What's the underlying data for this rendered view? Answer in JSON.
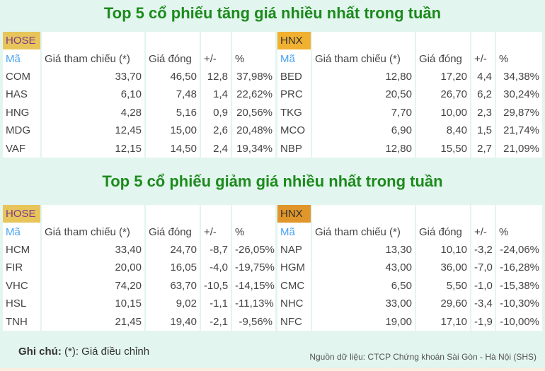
{
  "colors": {
    "hose_label": "#e8c55a",
    "hnx_label_top": "#f0b030",
    "hnx_label_bottom": "#e0962a",
    "title": "#1c8a1c",
    "code": "#4aa3f0",
    "up": "#1c8a1c",
    "down": "#e83a3a"
  },
  "top": {
    "title": "Top 5 cổ phiếu tăng giá nhiều nhất trong tuần",
    "headers": [
      "Mã",
      "Giá tham chiếu (*)",
      "Giá đóng",
      "+/-",
      "%"
    ],
    "hose": {
      "label": "HOSE",
      "rows": [
        [
          "COM",
          "33,70",
          "46,50",
          "12,8",
          "37,98%"
        ],
        [
          "HAS",
          "6,10",
          "7,48",
          "1,4",
          "22,62%"
        ],
        [
          "HNG",
          "4,28",
          "5,16",
          "0,9",
          "20,56%"
        ],
        [
          "MDG",
          "12,45",
          "15,00",
          "2,6",
          "20,48%"
        ],
        [
          "VAF",
          "12,15",
          "14,50",
          "2,4",
          "19,34%"
        ]
      ]
    },
    "hnx": {
      "label": "HNX",
      "rows": [
        [
          "BED",
          "12,80",
          "17,20",
          "4,4",
          "34,38%"
        ],
        [
          "PRC",
          "20,50",
          "26,70",
          "6,2",
          "30,24%"
        ],
        [
          "TKG",
          "7,70",
          "10,00",
          "2,3",
          "29,87%"
        ],
        [
          "MCO",
          "6,90",
          "8,40",
          "1,5",
          "21,74%"
        ],
        [
          "NBP",
          "12,80",
          "15,50",
          "2,7",
          "21,09%"
        ]
      ]
    }
  },
  "bottom": {
    "title": "Top 5 cổ phiếu giảm giá nhiều nhất trong tuần",
    "headers": [
      "Mã",
      "Giá tham chiếu (*)",
      "Giá đóng",
      "+/-",
      "%"
    ],
    "hose": {
      "label": "HOSE",
      "rows": [
        [
          "HCM",
          "33,40",
          "24,70",
          "-8,7",
          "-26,05%"
        ],
        [
          "FIR",
          "20,00",
          "16,05",
          "-4,0",
          "-19,75%"
        ],
        [
          "VHC",
          "74,20",
          "63,70",
          "-10,5",
          "-14,15%"
        ],
        [
          "HSL",
          "10,15",
          "9,02",
          "-1,1",
          "-11,13%"
        ],
        [
          "TNH",
          "21,45",
          "19,40",
          "-2,1",
          "-9,56%"
        ]
      ]
    },
    "hnx": {
      "label": "HNX",
      "rows": [
        [
          "NAP",
          "13,30",
          "10,10",
          "-3,2",
          "-24,06%"
        ],
        [
          "HGM",
          "43,00",
          "36,00",
          "-7,0",
          "-16,28%"
        ],
        [
          "CMC",
          "6,50",
          "5,50",
          "-1,0",
          "-15,38%"
        ],
        [
          "NHC",
          "33,00",
          "29,60",
          "-3,4",
          "-10,30%"
        ],
        [
          "NFC",
          "19,00",
          "17,10",
          "-1,9",
          "-10,00%"
        ]
      ]
    }
  },
  "note": {
    "label": "Ghi chú:",
    "text": " (*): Giá điều chỉnh"
  },
  "source": "Nguồn dữ liệu: CTCP Chứng khoán Sài Gòn - Hà Nội (SHS)"
}
